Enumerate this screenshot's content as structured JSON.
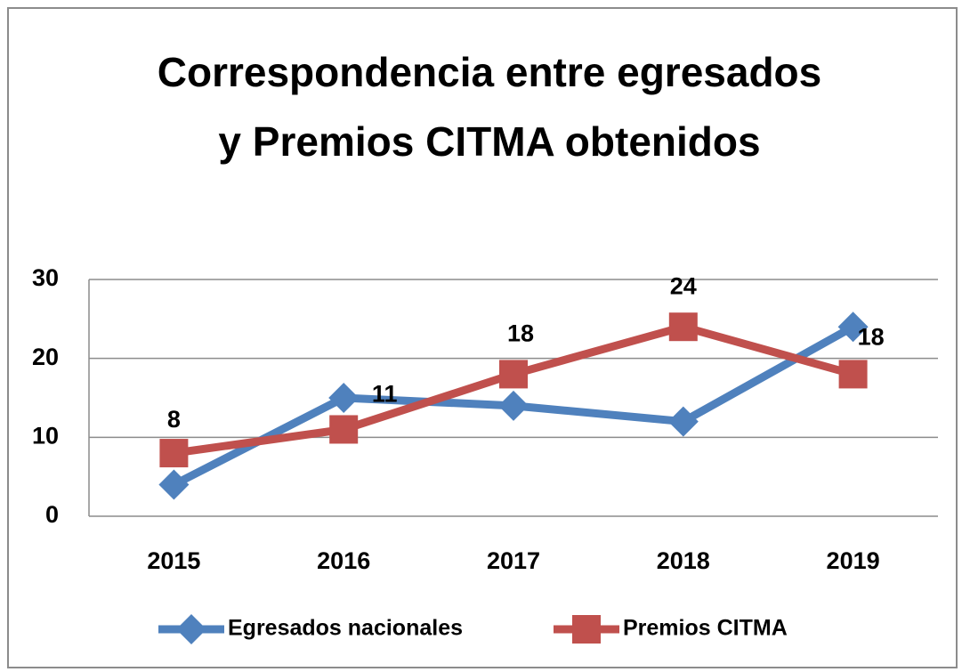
{
  "chart_data": {
    "type": "line",
    "title": "Correspondencia entre egresados y Premios CITMA obtenidos",
    "categories": [
      "2015",
      "2016",
      "2017",
      "2018",
      "2019"
    ],
    "series": [
      {
        "name": "Egresados nacionales",
        "color": "#4f81bd",
        "marker": "diamond",
        "values": [
          4,
          15,
          14,
          12,
          24
        ]
      },
      {
        "name": "Premios CITMA",
        "color": "#c0504d",
        "marker": "square",
        "values": [
          8,
          11,
          18,
          24,
          18
        ],
        "data_labels": true
      }
    ],
    "ylim": [
      0,
      30
    ],
    "yticks": [
      0,
      10,
      20,
      30
    ],
    "grid": true,
    "legend": "bottom"
  }
}
